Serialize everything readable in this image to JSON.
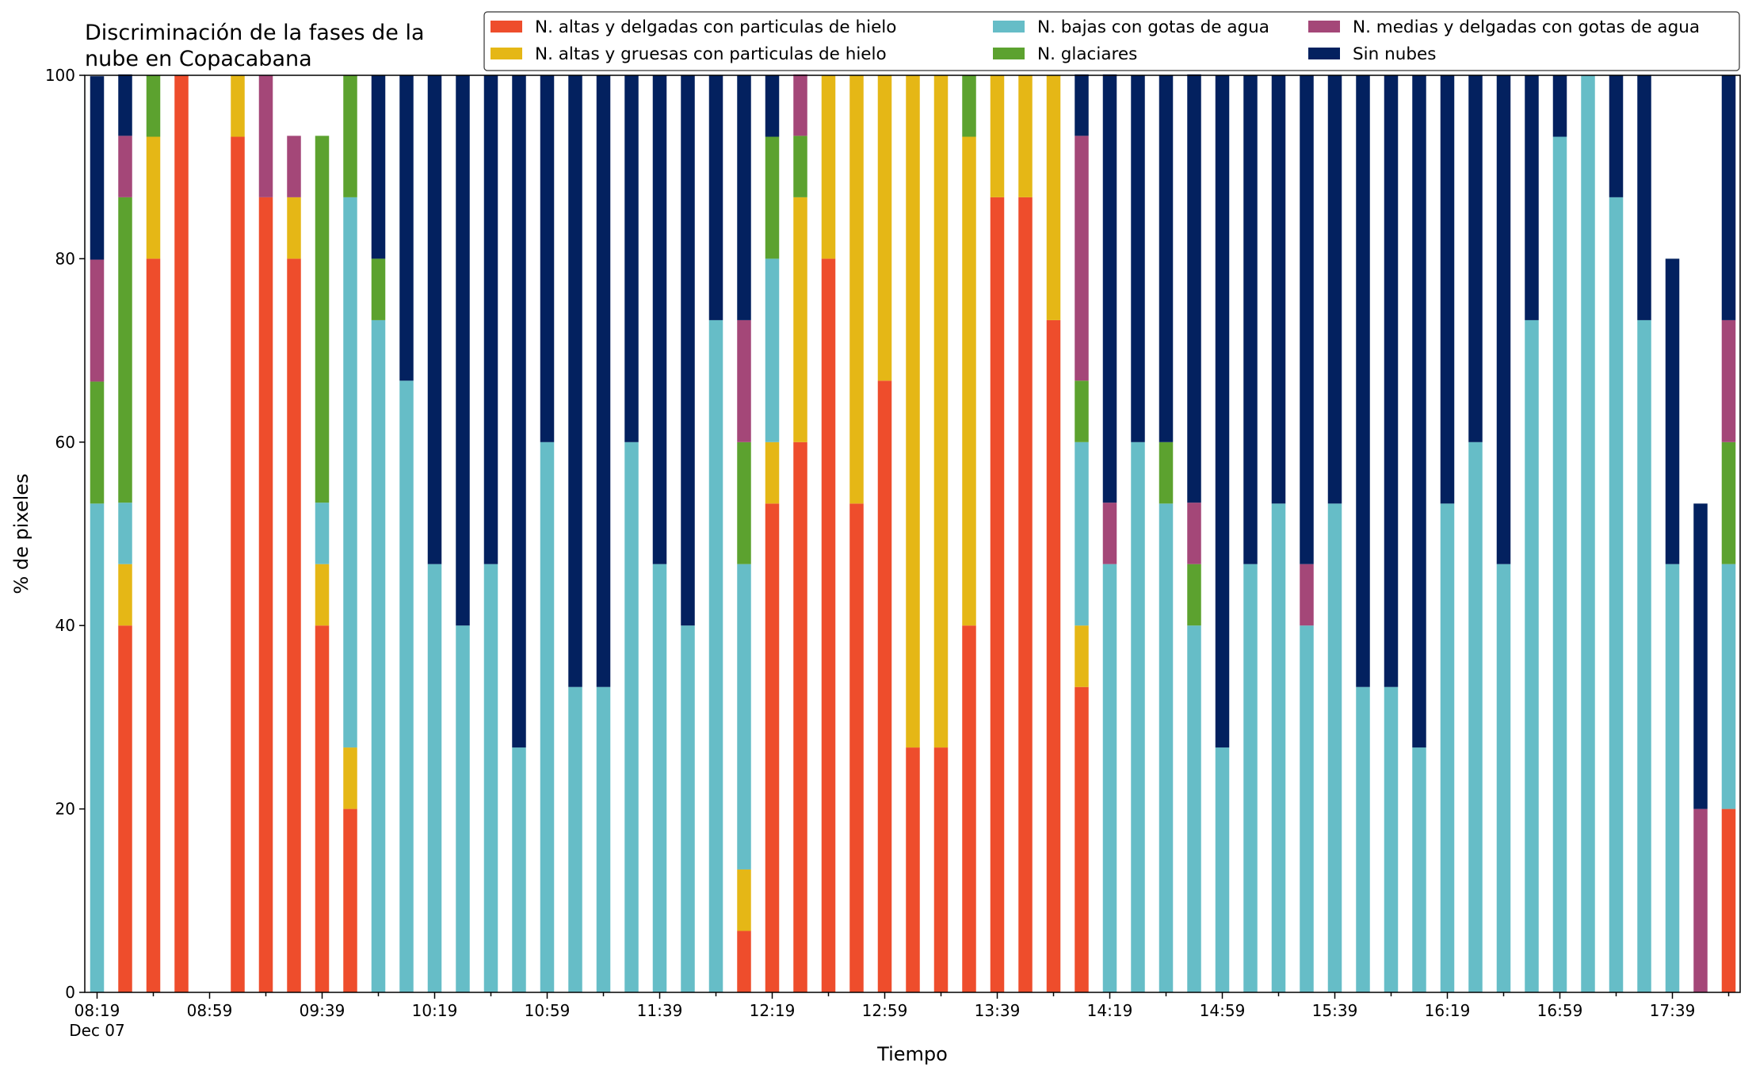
{
  "chart_data": {
    "type": "bar",
    "stacked": true,
    "title": "Discriminación de la fases de la\nnube en Copacabana",
    "xlabel": "Tiempo",
    "ylabel": "% de pixeles",
    "ylim": [
      0,
      100
    ],
    "yticks": [
      0,
      20,
      40,
      60,
      80,
      100
    ],
    "grid": false,
    "legend_position": "top-right",
    "legend_ncol": 3,
    "x_first_tick_sublabel": "Dec 07",
    "x": [
      "08:19",
      "08:29",
      "08:39",
      "08:49",
      "08:59",
      "09:09",
      "09:19",
      "09:29",
      "09:39",
      "09:49",
      "09:59",
      "10:09",
      "10:19",
      "10:29",
      "10:39",
      "10:49",
      "10:59",
      "11:09",
      "11:19",
      "11:29",
      "11:39",
      "11:49",
      "11:59",
      "12:09",
      "12:19",
      "12:29",
      "12:39",
      "12:49",
      "12:59",
      "13:09",
      "13:19",
      "13:29",
      "13:39",
      "13:49",
      "13:59",
      "14:09",
      "14:19",
      "14:29",
      "14:39",
      "14:49",
      "14:59",
      "15:09",
      "15:19",
      "15:29",
      "15:39",
      "15:49",
      "15:59",
      "16:09",
      "16:19",
      "16:29",
      "16:39",
      "16:49",
      "16:59",
      "17:09",
      "17:19",
      "17:29",
      "17:39",
      "17:49",
      "17:59"
    ],
    "x_tick_labels": [
      "08:19",
      "08:59",
      "09:39",
      "10:19",
      "10:59",
      "11:39",
      "12:19",
      "12:59",
      "13:39",
      "14:19",
      "14:59",
      "15:39",
      "16:19",
      "16:59",
      "17:39"
    ],
    "series": [
      {
        "name": "N. altas y delgadas con particulas de hielo",
        "color": "#ee4d2c",
        "values": [
          0,
          40,
          80,
          100,
          0,
          93.3,
          86.7,
          80,
          40,
          20,
          0,
          0,
          0,
          0,
          0,
          0,
          0,
          0,
          0,
          0,
          0,
          0,
          0,
          6.7,
          53.3,
          60,
          80,
          53.3,
          66.7,
          26.7,
          26.7,
          40,
          86.7,
          86.7,
          73.3,
          33.3,
          0,
          0,
          0,
          0,
          0,
          0,
          0,
          0,
          0,
          0,
          0,
          0,
          0,
          0,
          0,
          0,
          0,
          0,
          0,
          0,
          0,
          0,
          20
        ]
      },
      {
        "name": "N. altas y gruesas con particulas de hielo",
        "color": "#e5b716",
        "values": [
          0,
          6.7,
          13.3,
          0,
          0,
          6.7,
          0,
          6.7,
          6.7,
          6.7,
          0,
          0,
          0,
          0,
          0,
          0,
          0,
          0,
          0,
          0,
          0,
          0,
          0,
          6.7,
          6.7,
          26.7,
          20,
          46.7,
          33.3,
          73.3,
          73.3,
          53.3,
          13.3,
          13.3,
          26.7,
          6.7,
          0,
          0,
          0,
          0,
          0,
          0,
          0,
          0,
          0,
          0,
          0,
          0,
          0,
          0,
          0,
          0,
          0,
          0,
          0,
          0,
          0,
          0,
          0
        ]
      },
      {
        "name": "N. bajas con gotas de agua",
        "color": "#66bdc7",
        "values": [
          53.3,
          6.7,
          0,
          0,
          0,
          0,
          0,
          0,
          6.7,
          60,
          73.3,
          66.7,
          46.7,
          40,
          46.7,
          26.7,
          60,
          33.3,
          33.3,
          60,
          46.7,
          40,
          73.3,
          33.3,
          20,
          0,
          0,
          0,
          0,
          0,
          0,
          0,
          0,
          0,
          0,
          20,
          46.7,
          60,
          53.3,
          40,
          26.7,
          46.7,
          53.3,
          40,
          53.3,
          33.3,
          33.3,
          26.7,
          53.3,
          60,
          46.7,
          73.3,
          93.3,
          100,
          86.7,
          73.3,
          46.7,
          0,
          26.7
        ]
      },
      {
        "name": "N. glaciares",
        "color": "#5ca22f",
        "values": [
          13.3,
          33.3,
          6.7,
          0,
          0,
          0,
          0,
          0,
          40,
          13.3,
          6.7,
          0,
          0,
          0,
          0,
          0,
          0,
          0,
          0,
          0,
          0,
          0,
          0,
          13.3,
          13.3,
          6.7,
          0,
          0,
          0,
          0,
          0,
          6.7,
          0,
          0,
          0,
          6.7,
          0,
          0,
          6.7,
          6.7,
          0,
          0,
          0,
          0,
          0,
          0,
          0,
          0,
          0,
          0,
          0,
          0,
          0,
          0,
          0,
          0,
          0,
          0,
          13.3
        ]
      },
      {
        "name": "N. medias y delgadas con gotas de agua",
        "color": "#a44778",
        "values": [
          13.3,
          6.7,
          0,
          0,
          0,
          0,
          13.3,
          6.7,
          0,
          0,
          0,
          0,
          0,
          0,
          0,
          0,
          0,
          0,
          0,
          0,
          0,
          0,
          0,
          13.3,
          0,
          6.7,
          0,
          0,
          0,
          0,
          0,
          0,
          0,
          0,
          0,
          26.7,
          6.7,
          0,
          0,
          6.7,
          0,
          0,
          0,
          6.7,
          0,
          0,
          0,
          0,
          0,
          0,
          0,
          0,
          0,
          0,
          0,
          0,
          0,
          20,
          13.3
        ]
      },
      {
        "name": "Sin nubes",
        "color": "#03215f",
        "values": [
          20,
          6.7,
          0,
          0,
          0,
          0,
          0,
          0,
          0,
          0,
          20,
          33.3,
          53.3,
          60,
          53.3,
          73.3,
          40,
          66.7,
          66.7,
          40,
          53.3,
          60,
          26.7,
          26.7,
          6.7,
          0,
          0,
          0,
          0,
          0,
          0,
          0,
          0,
          0,
          0,
          6.7,
          46.7,
          40,
          40,
          46.7,
          73.3,
          53.3,
          46.7,
          53.3,
          46.7,
          66.7,
          66.7,
          73.3,
          46.7,
          40,
          53.3,
          26.7,
          6.7,
          0,
          13.3,
          26.7,
          33.3,
          33.3,
          26.7
        ]
      }
    ]
  }
}
